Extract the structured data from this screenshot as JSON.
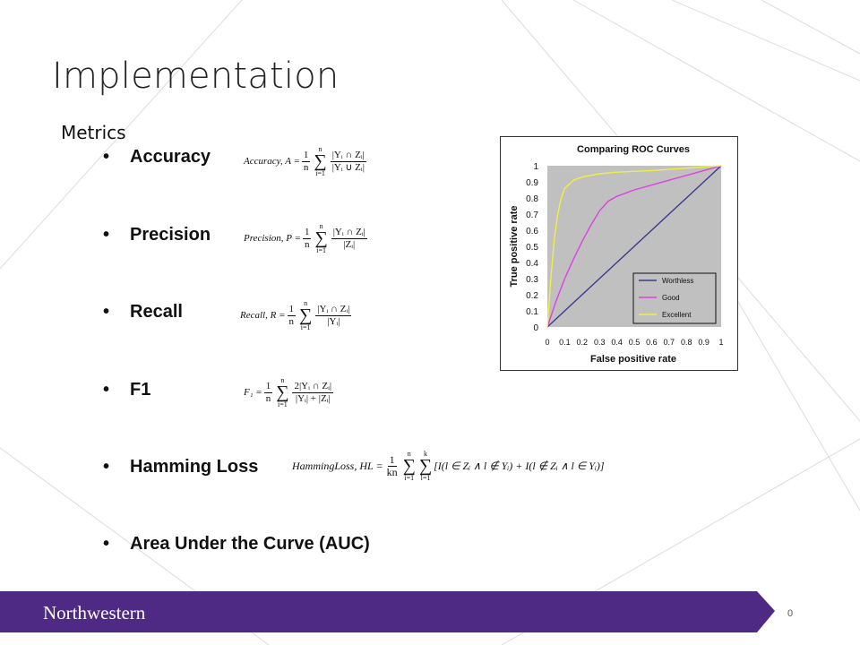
{
  "slide": {
    "title": "Implementation",
    "section_label": "Metrics",
    "bullet_glyph": "•",
    "items": [
      {
        "label": "Accuracy"
      },
      {
        "label": "Precision"
      },
      {
        "label": "Recall"
      },
      {
        "label": "F1"
      },
      {
        "label": "Hamming Loss"
      },
      {
        "label": "Area Under the Curve (AUC)"
      }
    ],
    "formulas": {
      "accuracy": {
        "lhs": "Accuracy, A =",
        "num": "|Yᵢ ∩ Zᵢ|",
        "den": "|Yᵢ ∪ Zᵢ|"
      },
      "precision": {
        "lhs": "Precision, P =",
        "num": "|Yᵢ ∩ Zᵢ|",
        "den": "|Zᵢ|"
      },
      "recall": {
        "lhs": "Recall, R =",
        "num": "|Yᵢ ∩ Zᵢ|",
        "den": "|Yᵢ|"
      },
      "f1": {
        "lhs": "F₁ =",
        "num": "2|Yᵢ ∩ Zᵢ|",
        "den": "|Yᵢ| + |Zᵢ|"
      },
      "hamming": {
        "lhs": "HammingLoss, HL =",
        "frac_num": "1",
        "frac_den": "kn",
        "body": "[I(l ∈ Zᵢ ∧ l ∉ Yᵢ) + I(l ∉ Zᵢ ∧ l ∈ Yᵢ)]",
        "inner_top": "k",
        "inner_bottom": "l=1"
      },
      "common": {
        "one": "1",
        "n": "n",
        "sum_top": "n",
        "sum_bottom": "i=1",
        "sigma": "∑"
      }
    },
    "footer": {
      "logo_text": "Northwestern",
      "page_number": "0",
      "bar_color": "#4e2a84"
    }
  },
  "chart_data": {
    "type": "line",
    "title": "Comparing ROC Curves",
    "xlabel": "False positive rate",
    "ylabel": "True positive rate",
    "xlim": [
      0,
      1
    ],
    "ylim": [
      0,
      1
    ],
    "xticks": [
      "0",
      "0.1",
      "0.2",
      "0.3",
      "0.4",
      "0.5",
      "0.6",
      "0.7",
      "0.8",
      "0.9",
      "1"
    ],
    "yticks": [
      "0",
      "0.1",
      "0.2",
      "0.3",
      "0.4",
      "0.5",
      "0.6",
      "0.7",
      "0.8",
      "0.9",
      "1"
    ],
    "grid": false,
    "legend_position": "bottom-right",
    "plot_background": "#c0c0c0",
    "series": [
      {
        "name": "Worthless",
        "color": "#3a3a8c",
        "x": [
          0,
          1
        ],
        "y": [
          0,
          1
        ]
      },
      {
        "name": "Good",
        "color": "#e040e0",
        "x": [
          0,
          0.05,
          0.1,
          0.15,
          0.2,
          0.25,
          0.3,
          0.35,
          0.4,
          0.5,
          0.6,
          0.7,
          0.8,
          0.9,
          1
        ],
        "y": [
          0,
          0.16,
          0.3,
          0.42,
          0.53,
          0.63,
          0.72,
          0.78,
          0.81,
          0.85,
          0.88,
          0.91,
          0.94,
          0.97,
          1
        ]
      },
      {
        "name": "Excellent",
        "color": "#f0f040",
        "x": [
          0,
          0.02,
          0.04,
          0.06,
          0.08,
          0.1,
          0.15,
          0.2,
          0.3,
          0.4,
          0.6,
          0.8,
          1
        ],
        "y": [
          0,
          0.3,
          0.55,
          0.7,
          0.8,
          0.86,
          0.91,
          0.93,
          0.95,
          0.96,
          0.97,
          0.985,
          1
        ]
      }
    ]
  }
}
